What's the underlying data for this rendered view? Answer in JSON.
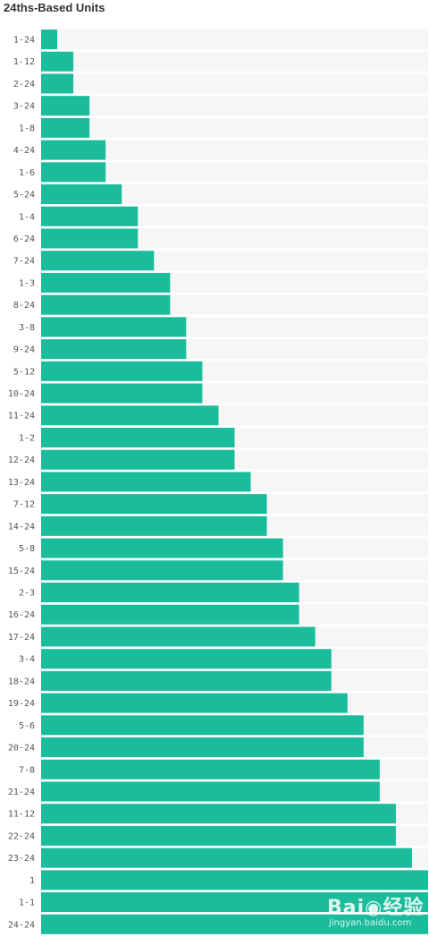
{
  "page": {
    "title": "24ths-Based Units"
  },
  "chart_data": {
    "type": "bar",
    "orientation": "horizontal",
    "title": "24ths-Based Units",
    "xlim": [
      0,
      24
    ],
    "grid": false,
    "legend": "none",
    "categories": [
      "1-24",
      "1-12",
      "2-24",
      "3-24",
      "1-8",
      "4-24",
      "1-6",
      "5-24",
      "1-4",
      "6-24",
      "7-24",
      "1-3",
      "8-24",
      "3-8",
      "9-24",
      "5-12",
      "10-24",
      "11-24",
      "1-2",
      "12-24",
      "13-24",
      "7-12",
      "14-24",
      "5-8",
      "15-24",
      "2-3",
      "16-24",
      "17-24",
      "3-4",
      "18-24",
      "19-24",
      "5-6",
      "20-24",
      "7-8",
      "21-24",
      "11-12",
      "22-24",
      "23-24",
      "1",
      "1-1",
      "24-24"
    ],
    "values": [
      1,
      2,
      2,
      3,
      3,
      4,
      4,
      5,
      6,
      6,
      7,
      8,
      8,
      9,
      9,
      10,
      10,
      11,
      12,
      12,
      13,
      14,
      14,
      15,
      15,
      16,
      16,
      17,
      18,
      18,
      19,
      20,
      20,
      21,
      21,
      22,
      22,
      23,
      24,
      24,
      24
    ]
  },
  "colors": {
    "bar": "#1abc9c",
    "track": "#f6f6f6",
    "label": "#555555"
  },
  "watermark": {
    "logo": "Bai◉经验",
    "url": "jingyan.baidu.com"
  }
}
